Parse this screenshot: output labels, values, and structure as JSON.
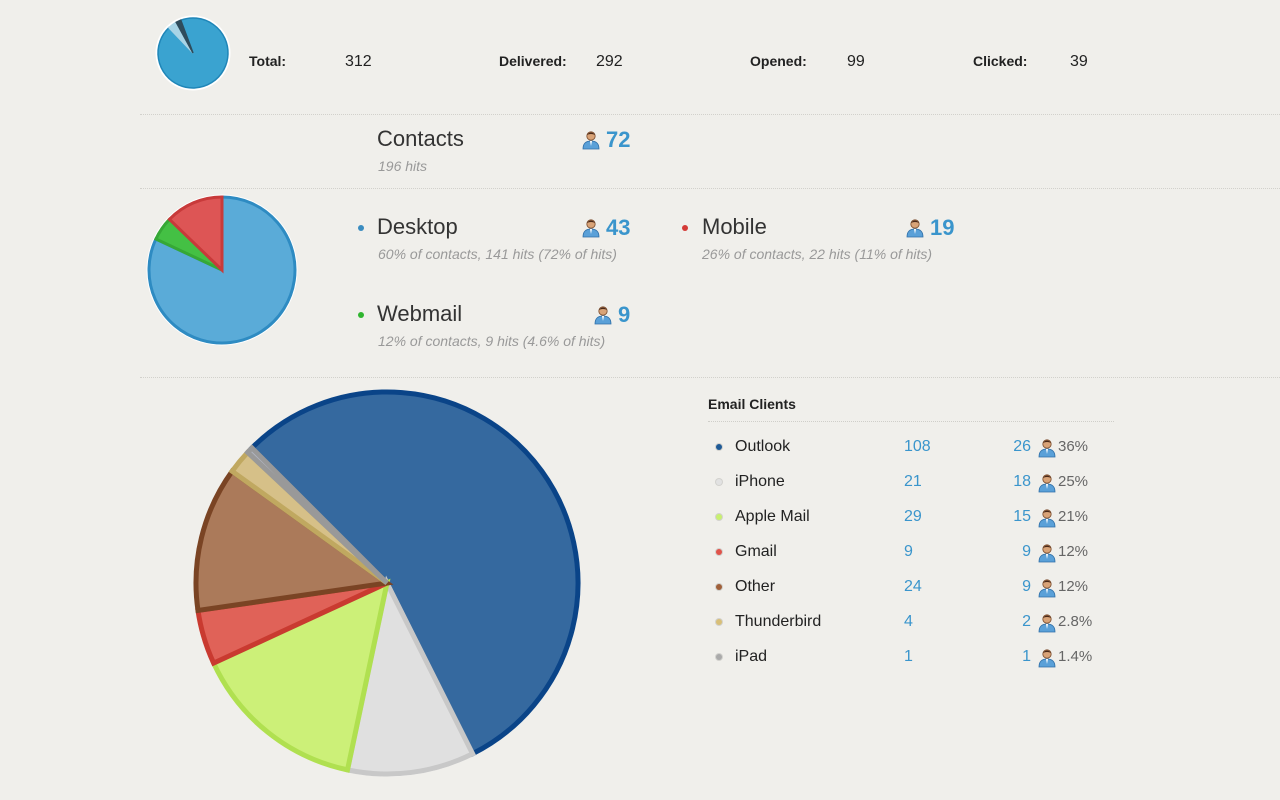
{
  "summary": {
    "total_label": "Total:",
    "total": "312",
    "delivered_label": "Delivered:",
    "delivered": "292",
    "opened_label": "Opened:",
    "opened": "99",
    "clicked_label": "Clicked:",
    "clicked": "39"
  },
  "contacts": {
    "title": "Contacts",
    "hits": "196 hits",
    "count": "72"
  },
  "devices": [
    {
      "name": "Desktop",
      "detail": "60% of contacts, 141 hits (72% of hits)",
      "count": "43",
      "hits": 141,
      "color": "#4a9fd0"
    },
    {
      "name": "Mobile",
      "detail": "26% of contacts, 22 hits (11% of hits)",
      "count": "19",
      "hits": 22,
      "color": "#d9534f"
    },
    {
      "name": "Webmail",
      "detail": "12% of contacts, 9 hits (4.6% of hits)",
      "count": "9",
      "hits": 9,
      "color": "#3cbf3c"
    }
  ],
  "email_clients": {
    "title": "Email Clients",
    "rows": [
      {
        "name": "Outlook",
        "hits": "108",
        "contacts": "26",
        "pct": "36%",
        "color": "#1f5a96"
      },
      {
        "name": "iPhone",
        "hits": "21",
        "contacts": "18",
        "pct": "25%",
        "color": "#e2e2e2"
      },
      {
        "name": "Apple Mail",
        "hits": "29",
        "contacts": "15",
        "pct": "21%",
        "color": "#c8f070"
      },
      {
        "name": "Gmail",
        "hits": "9",
        "contacts": "9",
        "pct": "12%",
        "color": "#e0534a"
      },
      {
        "name": "Other",
        "hits": "24",
        "contacts": "9",
        "pct": "12%",
        "color": "#a0603a"
      },
      {
        "name": "Thunderbird",
        "hits": "4",
        "contacts": "2",
        "pct": "2.8%",
        "color": "#d8bf78"
      },
      {
        "name": "iPad",
        "hits": "1",
        "contacts": "1",
        "pct": "1.4%",
        "color": "#aaaaaa"
      }
    ]
  }
}
